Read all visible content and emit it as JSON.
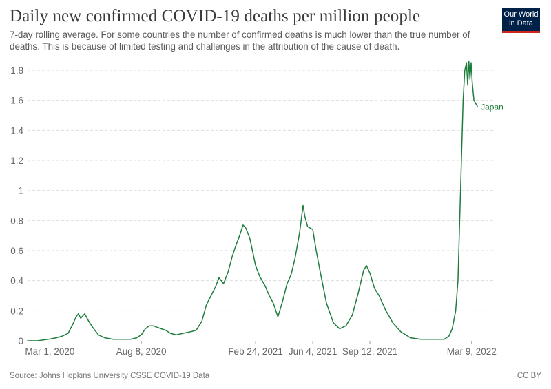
{
  "header": {
    "title": "Daily new confirmed COVID-19 deaths per million people",
    "subtitle": "7-day rolling average. For some countries the number of confirmed deaths is much lower than the true number of deaths. This is because of limited testing and challenges in the attribution of the cause of death."
  },
  "logo": {
    "line1": "Our World",
    "line2": "in Data"
  },
  "footer": {
    "source": "Source: Johns Hopkins University CSSE COVID-19 Data",
    "license": "CC BY"
  },
  "colors": {
    "series": "#1e7d3c",
    "grid": "#dddddd",
    "axis": "#999999",
    "logo_bg": "#002147",
    "logo_accent": "#ce261e"
  },
  "chart_data": {
    "type": "line",
    "title": "Daily new confirmed COVID-19 deaths per million people",
    "xlabel": "",
    "ylabel": "",
    "ylim": [
      0,
      1.8
    ],
    "yticks": [
      0,
      0.2,
      0.4,
      0.6,
      0.8,
      1,
      1.2,
      1.4,
      1.6,
      1.8
    ],
    "ytick_labels": [
      "0",
      "0.2",
      "0.4",
      "0.6",
      "0.8",
      "1",
      "1.2",
      "1.4",
      "1.6",
      "1.8"
    ],
    "xlim": [
      "2020-01-22",
      "2022-04-18"
    ],
    "xticks": [
      "2020-03-01",
      "2020-08-08",
      "2021-02-24",
      "2021-06-04",
      "2021-09-12",
      "2022-03-09"
    ],
    "xtick_labels": [
      "Mar 1, 2020",
      "Aug 8, 2020",
      "Feb 24, 2021",
      "Jun 4, 2021",
      "Sep 12, 2021",
      "Mar 9, 2022"
    ],
    "grid": true,
    "series": [
      {
        "name": "Japan",
        "x": [
          "2020-01-22",
          "2020-02-08",
          "2020-02-27",
          "2020-03-12",
          "2020-03-22",
          "2020-04-02",
          "2020-04-10",
          "2020-04-16",
          "2020-04-20",
          "2020-04-24",
          "2020-05-01",
          "2020-05-08",
          "2020-05-15",
          "2020-05-25",
          "2020-06-05",
          "2020-06-20",
          "2020-07-05",
          "2020-07-20",
          "2020-07-31",
          "2020-08-08",
          "2020-08-15",
          "2020-08-22",
          "2020-08-29",
          "2020-09-05",
          "2020-09-12",
          "2020-09-20",
          "2020-09-28",
          "2020-10-08",
          "2020-10-20",
          "2020-11-02",
          "2020-11-12",
          "2020-11-22",
          "2020-11-30",
          "2020-12-08",
          "2020-12-16",
          "2020-12-22",
          "2020-12-30",
          "2021-01-07",
          "2021-01-14",
          "2021-01-21",
          "2021-01-27",
          "2021-02-02",
          "2021-02-07",
          "2021-02-14",
          "2021-02-24",
          "2021-03-03",
          "2021-03-12",
          "2021-03-20",
          "2021-03-27",
          "2021-04-04",
          "2021-04-12",
          "2021-04-20",
          "2021-04-27",
          "2021-05-04",
          "2021-05-12",
          "2021-05-18",
          "2021-05-21",
          "2021-05-26",
          "2021-06-04",
          "2021-06-10",
          "2021-06-18",
          "2021-06-28",
          "2021-07-10",
          "2021-07-21",
          "2021-08-01",
          "2021-08-12",
          "2021-08-22",
          "2021-09-01",
          "2021-09-06",
          "2021-09-12",
          "2021-09-20",
          "2021-09-28",
          "2021-10-10",
          "2021-10-22",
          "2021-11-05",
          "2021-11-22",
          "2021-12-10",
          "2021-12-28",
          "2022-01-12",
          "2022-01-20",
          "2022-01-28",
          "2022-02-03",
          "2022-02-09",
          "2022-02-13",
          "2022-02-16",
          "2022-02-19",
          "2022-02-22",
          "2022-02-25",
          "2022-02-28",
          "2022-03-02",
          "2022-03-04",
          "2022-03-06",
          "2022-03-08",
          "2022-03-10",
          "2022-03-13",
          "2022-03-16",
          "2022-03-19"
        ],
        "y": [
          0,
          0,
          0.01,
          0.02,
          0.03,
          0.05,
          0.11,
          0.16,
          0.18,
          0.15,
          0.18,
          0.13,
          0.09,
          0.04,
          0.02,
          0.01,
          0.01,
          0.01,
          0.02,
          0.04,
          0.08,
          0.1,
          0.1,
          0.09,
          0.08,
          0.07,
          0.05,
          0.04,
          0.05,
          0.06,
          0.07,
          0.13,
          0.24,
          0.3,
          0.36,
          0.42,
          0.38,
          0.46,
          0.56,
          0.64,
          0.7,
          0.77,
          0.75,
          0.68,
          0.5,
          0.43,
          0.37,
          0.3,
          0.25,
          0.16,
          0.26,
          0.38,
          0.44,
          0.55,
          0.72,
          0.9,
          0.83,
          0.76,
          0.74,
          0.6,
          0.44,
          0.25,
          0.12,
          0.08,
          0.1,
          0.17,
          0.31,
          0.47,
          0.5,
          0.45,
          0.35,
          0.3,
          0.2,
          0.12,
          0.06,
          0.02,
          0.01,
          0.01,
          0.01,
          0.01,
          0.03,
          0.08,
          0.2,
          0.4,
          0.8,
          1.2,
          1.6,
          1.8,
          1.85,
          1.7,
          1.86,
          1.74,
          1.85,
          1.72,
          1.6,
          1.58,
          1.56
        ]
      }
    ]
  }
}
